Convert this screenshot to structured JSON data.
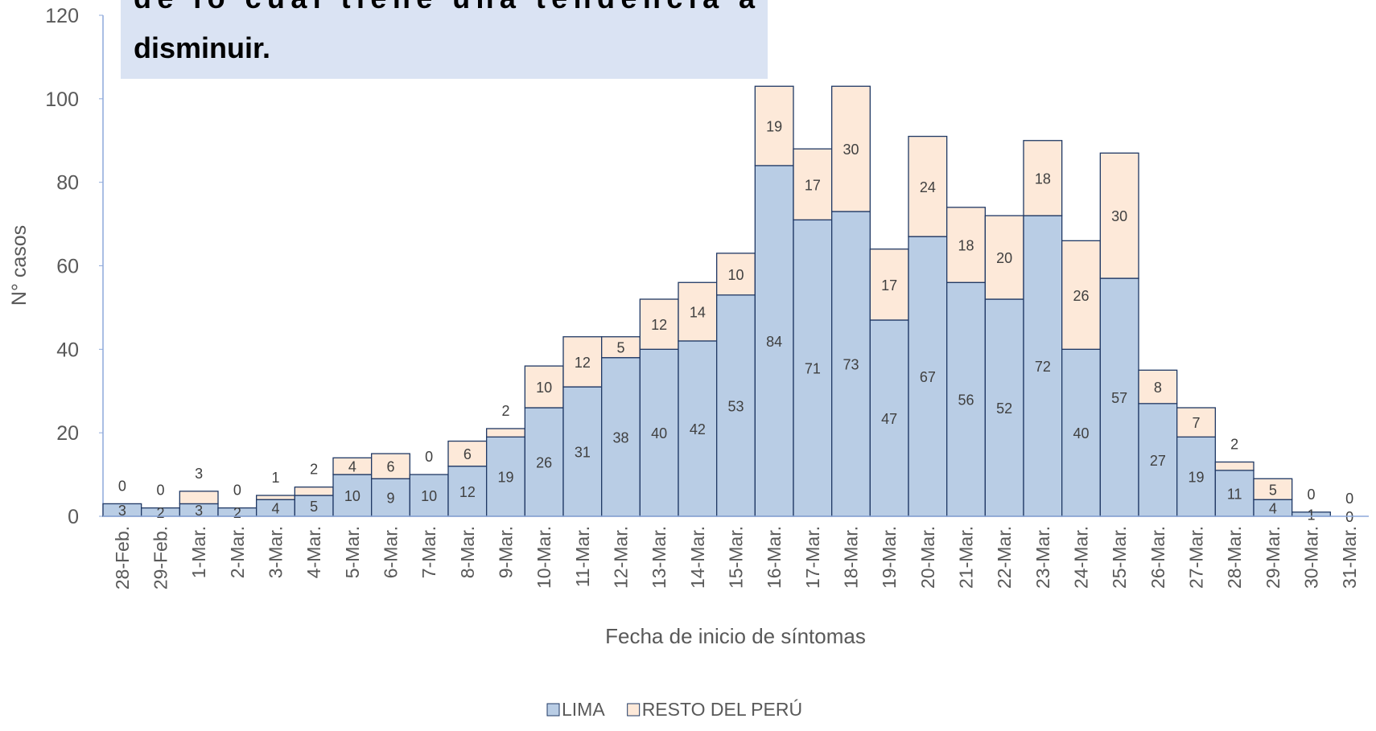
{
  "chart_data": {
    "type": "stacked_bar",
    "annotation": [
      "de lo cual tiene una tendencia a",
      "disminuir."
    ],
    "ylabel": "N° casos",
    "xlabel": "Fecha de inicio de síntomas",
    "categories": [
      "28-Feb.",
      "29-Feb.",
      "1-Mar.",
      "2-Mar.",
      "3-Mar.",
      "4-Mar.",
      "5-Mar.",
      "6-Mar.",
      "7-Mar.",
      "8-Mar.",
      "9-Mar.",
      "10-Mar.",
      "11-Mar.",
      "12-Mar.",
      "13-Mar.",
      "14-Mar.",
      "15-Mar.",
      "16-Mar.",
      "17-Mar.",
      "18-Mar.",
      "19-Mar.",
      "20-Mar.",
      "21-Mar.",
      "22-Mar.",
      "23-Mar.",
      "24-Mar.",
      "25-Mar.",
      "26-Mar.",
      "27-Mar.",
      "28-Mar.",
      "29-Mar.",
      "30-Mar.",
      "31-Mar."
    ],
    "series": [
      {
        "name": "LIMA",
        "color": "#b9cde5",
        "values": [
          3,
          2,
          3,
          2,
          4,
          5,
          10,
          9,
          10,
          12,
          19,
          26,
          31,
          38,
          40,
          42,
          53,
          84,
          71,
          73,
          47,
          67,
          56,
          52,
          72,
          40,
          57,
          27,
          19,
          11,
          4,
          1,
          0
        ]
      },
      {
        "name": "RESTO DEL PERÚ",
        "color": "#fde9d9",
        "values": [
          0,
          0,
          3,
          0,
          1,
          2,
          4,
          6,
          0,
          6,
          2,
          10,
          12,
          5,
          12,
          14,
          10,
          19,
          17,
          30,
          17,
          24,
          18,
          20,
          18,
          26,
          30,
          8,
          7,
          2,
          5,
          0,
          0
        ]
      }
    ],
    "ylim": [
      0,
      120
    ],
    "yticks": [
      0,
      20,
      40,
      60,
      80,
      100,
      120
    ],
    "legend": "bottom"
  }
}
